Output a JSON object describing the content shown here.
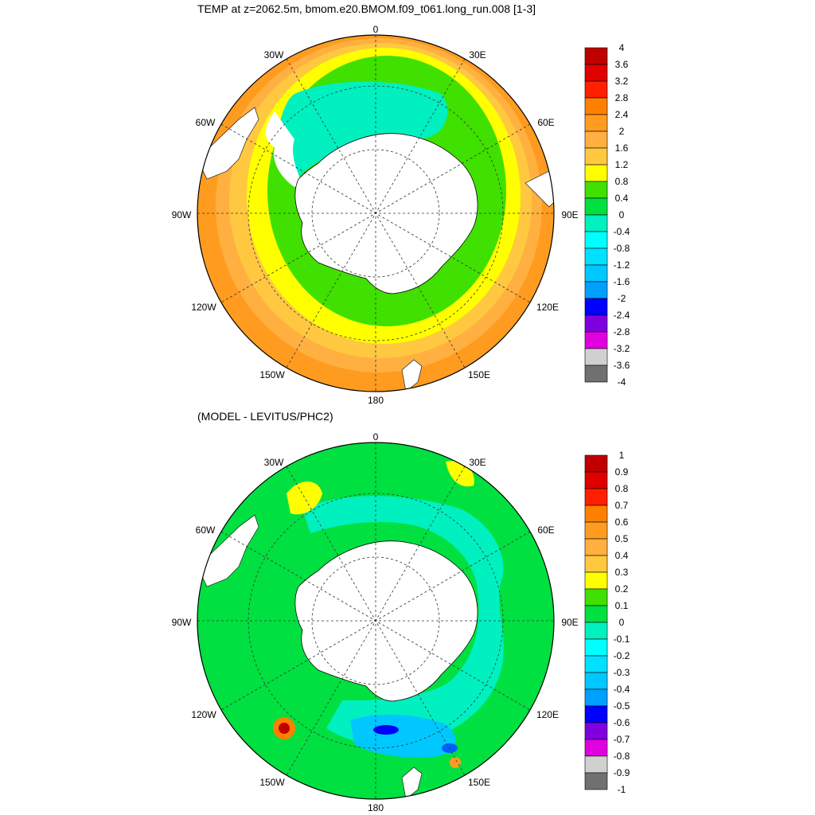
{
  "top_panel": {
    "title": "TEMP at z=2062.5m, bmom.e20.BMOM.f09_t061.long_run.008 [1-3]",
    "longitude_labels": [
      "0",
      "30E",
      "60E",
      "90E",
      "120E",
      "150E",
      "180",
      "150W",
      "120W",
      "90W",
      "60W",
      "30W"
    ],
    "colorbar": {
      "labels": [
        "4",
        "3.6",
        "3.2",
        "2.8",
        "2.4",
        "2",
        "1.6",
        "1.2",
        "0.8",
        "0.4",
        "0",
        "-0.4",
        "-0.8",
        "-1.2",
        "-1.6",
        "-2",
        "-2.4",
        "-2.8",
        "-3.2",
        "-3.6",
        "-4"
      ],
      "colors": [
        "#c00000",
        "#e00000",
        "#ff2000",
        "#ff8000",
        "#ff9c20",
        "#ffb040",
        "#ffc840",
        "#ffff00",
        "#40e000",
        "#00e040",
        "#00f0c0",
        "#00ffff",
        "#00e0ff",
        "#00c8ff",
        "#00a0ff",
        "#0000ff",
        "#8000e0",
        "#e000e0",
        "#d0d0d0",
        "#707070"
      ]
    }
  },
  "bottom_panel": {
    "title": "(MODEL - LEVITUS/PHC2)",
    "longitude_labels": [
      "0",
      "30E",
      "60E",
      "90E",
      "120E",
      "150E",
      "180",
      "150W",
      "120W",
      "90W",
      "60W",
      "30W"
    ],
    "colorbar": {
      "labels": [
        "1",
        "0.9",
        "0.8",
        "0.7",
        "0.6",
        "0.5",
        "0.4",
        "0.3",
        "0.2",
        "0.1",
        "0",
        "-0.1",
        "-0.2",
        "-0.3",
        "-0.4",
        "-0.5",
        "-0.6",
        "-0.7",
        "-0.8",
        "-0.9",
        "-1"
      ],
      "colors": [
        "#c00000",
        "#e00000",
        "#ff2000",
        "#ff8000",
        "#ff9c20",
        "#ffb040",
        "#ffc840",
        "#ffff00",
        "#40e000",
        "#00e040",
        "#00f0c0",
        "#00ffff",
        "#00e0ff",
        "#00c8ff",
        "#00a0ff",
        "#0000ff",
        "#8000e0",
        "#e000e0",
        "#d0d0d0",
        "#707070"
      ]
    }
  }
}
